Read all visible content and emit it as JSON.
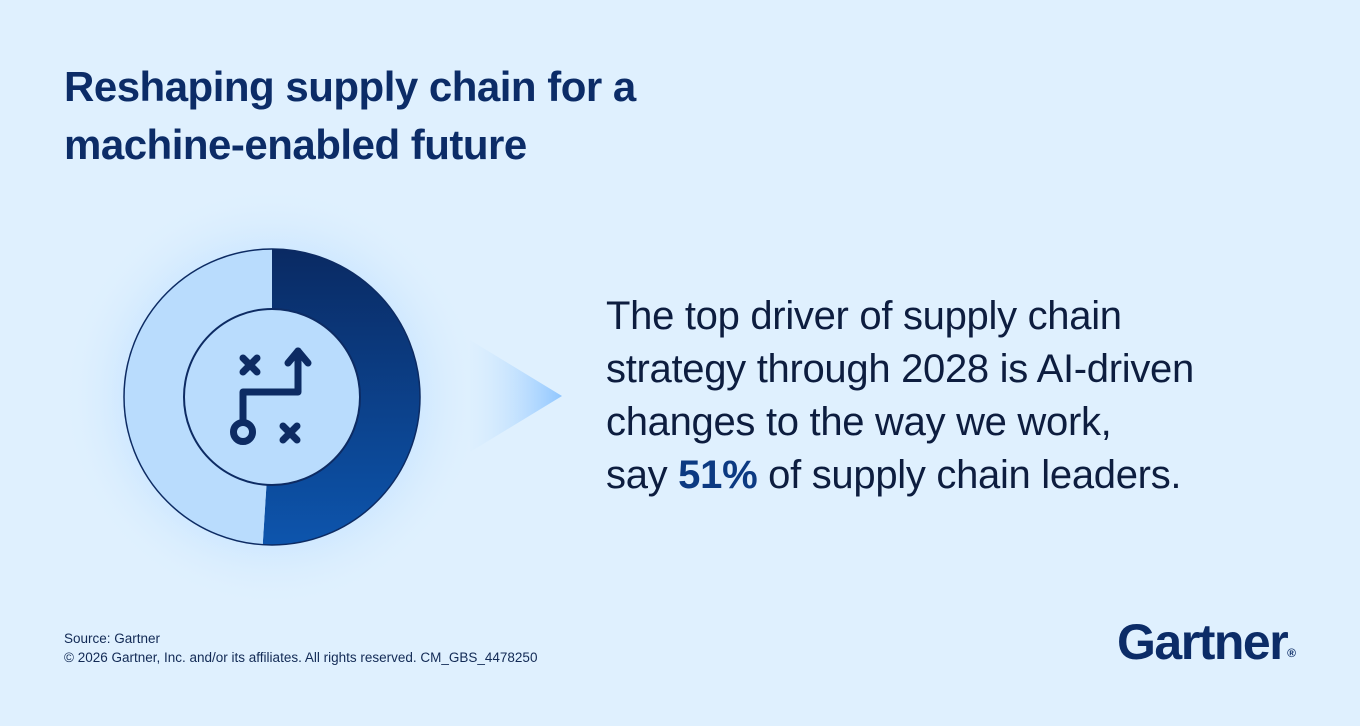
{
  "header": {
    "title_line1": "Reshaping supply chain for a",
    "title_line2": "machine-enabled future"
  },
  "statement": {
    "line1": "The top driver of supply chain",
    "line2": "strategy through 2028 is AI-driven",
    "line3": "changes to the way we work,",
    "line4_prefix": "say ",
    "line4_value": "51%",
    "line4_suffix": " of supply chain leaders."
  },
  "footer": {
    "source": "Source: Gartner",
    "copyright": "© 2026 Gartner, Inc. and/or its affiliates. All rights reserved. CM_GBS_4478250"
  },
  "brand": {
    "logo_text": "Gartner",
    "logo_mark": "®"
  },
  "chart_data": {
    "type": "pie",
    "title": "",
    "categories": [
      "",
      ""
    ],
    "values": [
      51,
      49
    ],
    "colors": {
      "highlight": "#0c3a82",
      "highlight_dark": "#0a2a63",
      "remainder": "#b9dcfd",
      "outline": "#0d2b63",
      "glow": "#c6e4ff"
    },
    "center_icon": "strategy-path-icon"
  }
}
